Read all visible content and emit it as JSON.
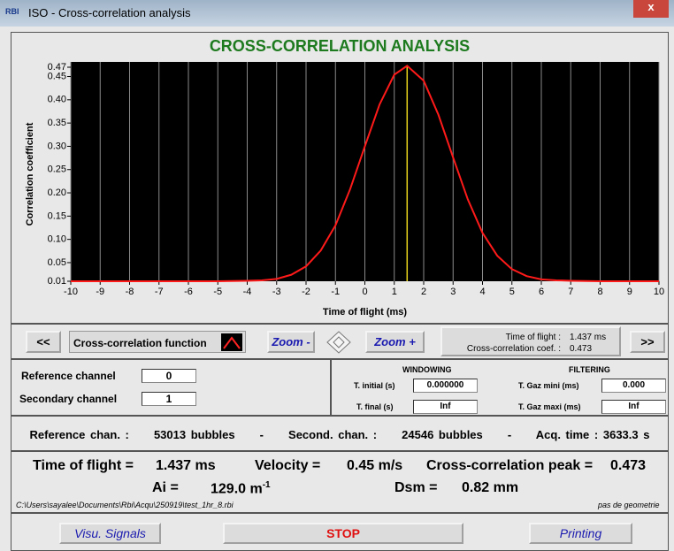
{
  "window": {
    "title": "ISO - Cross-correlation analysis",
    "icon": "RBI"
  },
  "header": {
    "title": "CROSS-CORRELATION ANALYSIS"
  },
  "plot": {
    "type": "line",
    "x_label": "Time of flight (ms)",
    "y_label": "Correlation coefficient",
    "x": [
      -10,
      -8,
      -6,
      -5,
      -4,
      -3.5,
      -3,
      -2.5,
      -2,
      -1.5,
      -1,
      -0.5,
      0,
      0.5,
      1,
      1.437,
      2,
      2.5,
      3,
      3.5,
      4,
      4.5,
      5,
      5.5,
      6,
      6.5,
      7,
      8,
      10
    ],
    "values": [
      0.01,
      0.01,
      0.01,
      0.01,
      0.011,
      0.012,
      0.015,
      0.024,
      0.042,
      0.076,
      0.13,
      0.208,
      0.3,
      0.39,
      0.454,
      0.473,
      0.441,
      0.368,
      0.276,
      0.186,
      0.114,
      0.065,
      0.036,
      0.021,
      0.014,
      0.012,
      0.011,
      0.01,
      0.01
    ],
    "color": "#ff1a1a",
    "marker_color": "#e6d21a",
    "xlim": [
      -10,
      10
    ],
    "xticks": [
      -10,
      -9,
      -8,
      -7,
      -6,
      -5,
      -4,
      -3,
      -2,
      -1,
      0,
      1,
      2,
      3,
      4,
      5,
      6,
      7,
      8,
      9,
      10
    ],
    "ylim": [
      0.01,
      0.47
    ],
    "yticks": [
      0.01,
      0.05,
      {
        "value": 0.1,
        "label": "0.10"
      },
      0.15,
      {
        "value": 0.2,
        "label": "0.20"
      },
      0.25,
      {
        "value": 0.3,
        "label": "0.30"
      },
      0.35,
      {
        "value": 0.4,
        "label": "0.40"
      },
      0.45,
      0.47
    ],
    "grid": true
  },
  "toolbar": {
    "prev": "<<",
    "function_label": "Cross-correlation function",
    "zoom_out": "Zoom -",
    "zoom_in": "Zoom +",
    "next": ">>",
    "info": {
      "tof_label": "Time of flight :",
      "tof_value": "1.437 ms",
      "coef_label": "Cross-correlation coef. :",
      "coef_value": "0.473"
    }
  },
  "channels": {
    "reference_label": "Reference channel",
    "reference_value": "0",
    "secondary_label": "Secondary channel",
    "secondary_value": "1"
  },
  "windowing": {
    "title": "WINDOWING",
    "initial_label": "T. initial (s)",
    "initial_value": "0.000000",
    "final_label": "T. final (s)",
    "final_value": "Inf"
  },
  "filtering": {
    "title": "FILTERING",
    "mini_label": "T. Gaz mini (ms)",
    "mini_value": "0.000",
    "maxi_label": "T. Gaz maxi (ms)",
    "maxi_value": "Inf"
  },
  "stats": {
    "ref_label": "Reference chan. :",
    "ref_value": "53013 bubbles",
    "sep": "-",
    "sec_label": "Second. chan. :",
    "sec_value": "24546 bubbles",
    "acq_label": "Acq. time :",
    "acq_value": "3633.3 s"
  },
  "results": {
    "tof_label": "Time of flight =",
    "tof_value": "1.437 ms",
    "vel_label": "Velocity =",
    "vel_value": "0.45 m/s",
    "peak_label": "Cross-correlation peak =",
    "peak_value": "0.473",
    "ai_label": "Ai =",
    "ai_value": "129.0 m",
    "ai_exp": "-1",
    "dsm_label": "Dsm =",
    "dsm_value": "0.82 mm"
  },
  "file_path": "C:\\Users\\sayalee\\Documents\\Rbi\\Acqu\\250919\\test_1hr_8.rbi",
  "geometry_note": "pas de geometrie",
  "buttons": {
    "visu": "Visu. Signals",
    "stop": "STOP",
    "printing": "Printing"
  }
}
